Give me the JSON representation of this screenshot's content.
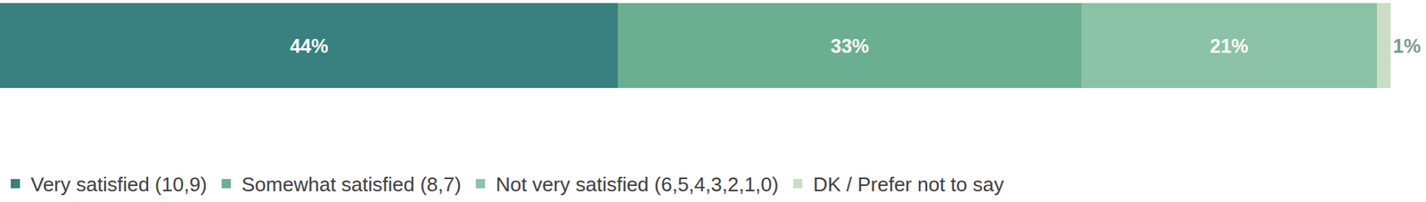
{
  "chart_data": {
    "type": "bar",
    "orientation": "horizontal",
    "stacked": true,
    "data_labels": true,
    "tick_labels": false,
    "grid": false,
    "legend": "bottom",
    "categories": [
      null
    ],
    "xlim": [
      0,
      99
    ],
    "series": [
      {
        "name": "Very satisfied (10,9)",
        "color": "#38817f",
        "values": [
          44
        ],
        "value_labels": [
          "44%"
        ]
      },
      {
        "name": "Somewhat satisfied (8,7)",
        "color": "#6aaf91",
        "values": [
          33
        ],
        "value_labels": [
          "33%"
        ]
      },
      {
        "name": "Not very satisfied (6,5,4,3,2,1,0)",
        "color": "#8cc2a7",
        "values": [
          21
        ],
        "value_labels": [
          "21%"
        ]
      },
      {
        "name": "DK / Prefer not to say",
        "color": "#cddcc5",
        "values": [
          1
        ],
        "value_labels": [
          "1%"
        ]
      }
    ]
  }
}
